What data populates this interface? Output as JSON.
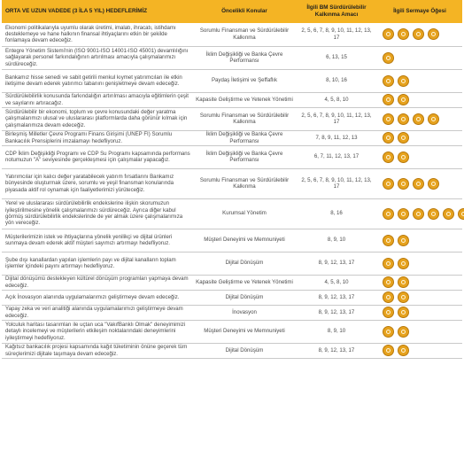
{
  "headers": {
    "goal": "ORTA VE UZUN VADEDE (3 İLA 5 YIL) HEDEFLERİMİZ",
    "topics": "Öncelikli Konular",
    "sdg": "İlgili BM Sürdürülebilir Kalkınma Amacı",
    "capital": "İlgili Sermaye Öğesi"
  },
  "rows": [
    {
      "goal": "Ekonomi politikalarıyla uyumlu olarak üretimi, imalatı, ihracatı, istihdamı desteklemeye ve hane halkının finansal ihtiyaçlarını etkin bir şekilde fonlamaya devam edeceğiz.",
      "topic": "Sorumlu Finansman ve Sürdürülebilir Kalkınma",
      "sdg": "2, 5, 6, 7, 8, 9, 10, 11, 12, 13, 17",
      "capitals": [
        "financial-capital-icon",
        "manufactured-capital-icon",
        "human-capital-icon",
        "social-capital-icon"
      ]
    },
    {
      "goal": "Entegre Yönetim Sistemi'nin (ISO 9001-ISO 14001-ISO 45001) devamlılığını sağlayarak personel farkındalığının artırılması amacıyla çalışmalarımızı sürdüreceğiz.",
      "topic": "İklim Değişikliği ve Banka Çevre Performansı",
      "sdg": "6, 13, 15",
      "capitals": [
        "natural-capital-icon"
      ]
    },
    {
      "goal": "Bankamız hisse senedi ve sabit getirili menkul kıymet yatırımcıları ile etkin iletişime devam ederek yatırımcı tabanını genişletmeye devam edeceğiz.",
      "topic": "Paydaş İletişimi ve Şeffaflık",
      "sdg": "8, 10, 16",
      "capitals": [
        "financial-capital-icon",
        "social-capital-icon"
      ]
    },
    {
      "goal": "Sürdürülebilirlik konusunda farkındalığın artırılması amacıyla eğitimlerin çeşit ve sayılarını artıracağız.",
      "topic": "Kapasite Geliştirme ve Yetenek Yönetimi",
      "sdg": "4, 5, 8, 10",
      "capitals": [
        "human-capital-icon",
        "intellectual-capital-icon"
      ]
    },
    {
      "goal": "Sürdürülebilir bir ekonomi, toplum ve çevre konusundaki değer yaratma çalışmalarımızı ulusal ve uluslararası platformlarda daha görünür kılmak için çalışmalarımıza devam edeceğiz.",
      "topic": "Sorumlu Finansman ve Sürdürülebilir Kalkınma",
      "sdg": "2, 5, 6, 7, 8, 9, 10, 11, 12, 13, 17",
      "capitals": [
        "financial-capital-icon",
        "manufactured-capital-icon",
        "human-capital-icon",
        "social-capital-icon"
      ]
    },
    {
      "goal": "Birleşmiş Milletler Çevre Programı Finans Girişimi (UNEP FI) Sorumlu Bankacılık Prensiplerini imzalamayı hedefliyoruz.",
      "topic": "İklim Değişikliği ve Banka Çevre Performansı",
      "sdg": "7, 8, 9, 11, 12, 13",
      "capitals": [
        "natural-capital-icon",
        "social-capital-icon"
      ]
    },
    {
      "goal": "CDP İklim Değişikliği Programı ve CDP Su Programı kapsamında performans notumuzun \"A\" seviyesinde gerçekleşmesi için çalışmalar yapacağız.",
      "topic": "İklim Değişikliği ve Banka Çevre Performansı",
      "sdg": "6, 7, 11, 12, 13, 17",
      "capitals": [
        "natural-capital-icon",
        "social-capital-icon"
      ]
    },
    {
      "goal": "Yatırımcılar için kalıcı değer yaratabilecek yatırım fırsatlarını Bankamız bünyesinde oluşturmak üzere, sorumlu ve yeşil finansman konularında piyasada aktif rol oynamak için faaliyetlerimizi yürüteceğiz.",
      "topic": "Sorumlu Finansman ve Sürdürülebilir Kalkınma",
      "sdg": "2, 5, 6, 7, 8, 9, 10, 11, 12, 13, 17",
      "capitals": [
        "financial-capital-icon",
        "manufactured-capital-icon",
        "human-capital-icon",
        "social-capital-icon"
      ]
    },
    {
      "goal": "Yerel ve uluslararası sürdürülebilirlik endekslerine ilişkin skorumuzun iyileştirilmesine yönelik çalışmalarımızı sürdüreceğiz. Ayrıca diğer kabul görmüş sürdürülebilirlik endekslerinde de yer almak üzere çalışmalarımıza yön vereceğiz.",
      "topic": "Kurumsal Yönetim",
      "sdg": "8, 16",
      "capitals": [
        "human-capital-icon",
        "financial-capital-icon",
        "social-capital-icon",
        "natural-capital-icon",
        "intellectual-capital-icon",
        "manufactured-capital-icon"
      ]
    },
    {
      "goal": "Müşterilerimizin istek ve ihtiyaçlarına yönelik yenilikçi ve dijital ürünleri sunmaya devam ederek aktif müşteri sayımızı artırmayı hedefliyoruz.",
      "topic": "Müşteri Deneyimi ve Memnuniyeti",
      "sdg": "8, 9, 10",
      "capitals": [
        "intellectual-capital-icon",
        "social-capital-icon"
      ]
    },
    {
      "goal": "Şube dışı kanallardan yapılan işlemlerin payı ve dijital kanalların toplam işlemler içindeki payını artırmayı hedefliyoruz.",
      "topic": "Dijital Dönüşüm",
      "sdg": "8, 9, 12, 13, 17",
      "capitals": [
        "manufactured-capital-icon",
        "intellectual-capital-icon"
      ]
    },
    {
      "goal": "Dijital dönüşümü destekleyen kültürel dönüşüm programları yapmaya devam edeceğiz.",
      "topic": "Kapasite Geliştirme ve Yetenek Yönetimi",
      "sdg": "4, 5, 8, 10",
      "capitals": [
        "human-capital-icon",
        "intellectual-capital-icon"
      ]
    },
    {
      "goal": "Açık İnovasyon alanında uygulamalarımızı geliştirmeye devam edeceğiz.",
      "topic": "Dijital Dönüşüm",
      "sdg": "8, 9, 12, 13, 17",
      "capitals": [
        "manufactured-capital-icon",
        "intellectual-capital-icon"
      ]
    },
    {
      "goal": "Yapay zeka ve veri analitiği alanında uygulamalarımızı geliştirmeye devam edeceğiz.",
      "topic": "İnovasyon",
      "sdg": "8, 9, 12, 13, 17",
      "capitals": [
        "manufactured-capital-icon",
        "intellectual-capital-icon"
      ]
    },
    {
      "goal": "Yolculuk haritası tasarımları ile uçtan uca \"VakıfBanklı Olmak\" deneyimimizi detaylı incelemeyi ve müşterilerin etkileşim noktalarındaki deneyimlerini iyileştirmeyi hedefliyoruz.",
      "topic": "Müşteri Deneyimi ve Memnuniyeti",
      "sdg": "8, 9, 10",
      "capitals": [
        "intellectual-capital-icon",
        "social-capital-icon"
      ]
    },
    {
      "goal": "Kağıtsız bankacılık projesi kapsamında kağıt tüketiminin önüne geçerek tüm süreçlerimizi dijitale taşımaya devam edeceğiz.",
      "topic": "Dijital Dönüşüm",
      "sdg": "8, 9, 12, 13, 17",
      "capitals": [
        "manufactured-capital-icon",
        "intellectual-capital-icon"
      ]
    }
  ]
}
